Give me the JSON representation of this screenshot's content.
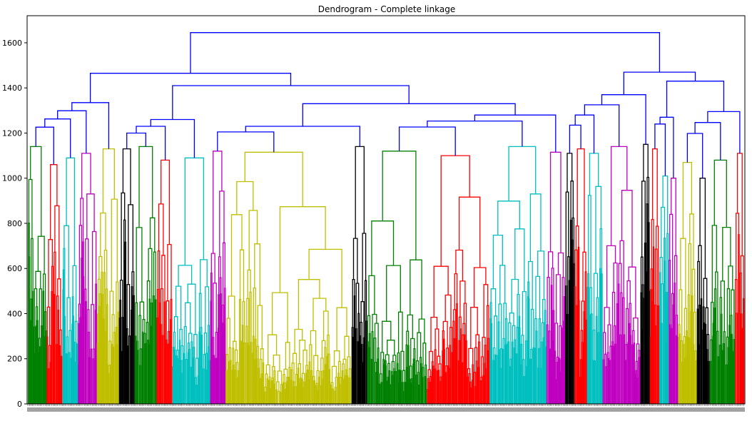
{
  "chart_data": {
    "type": "dendrogram",
    "title": "Dendrogram - Complete linkage",
    "xlabel": "",
    "ylabel": "",
    "ylim": [
      0,
      1720
    ],
    "yticks": [
      0,
      200,
      400,
      600,
      800,
      1000,
      1200,
      1400,
      1600
    ],
    "grid": false,
    "above_threshold_color": "#0000ff",
    "merge_heights_upper": {
      "root": 1645,
      "left_main": 1465,
      "right_main": 1470,
      "left_a": 1335,
      "left_b": 1410,
      "left_b_right": 1330,
      "left_b_right_right": 1280,
      "right_a": 1370,
      "right_b": 1430,
      "right_b_right": 1295
    },
    "cluster_colors": [
      "#008000",
      "#ff0000",
      "#00bfbf",
      "#bf00bf",
      "#bfbf00",
      "#000000"
    ],
    "clusters": [
      {
        "color": "#008000",
        "height": 1140
      },
      {
        "color": "#ff0000",
        "height": 1060
      },
      {
        "color": "#00bfbf",
        "height": 1090
      },
      {
        "color": "#bf00bf",
        "height": 1110
      },
      {
        "color": "#bfbf00",
        "height": 1130
      },
      {
        "color": "#000000",
        "height": 1130
      },
      {
        "color": "#008000",
        "height": 1140
      },
      {
        "color": "#ff0000",
        "height": 1080
      },
      {
        "color": "#00bfbf",
        "height": 1090
      },
      {
        "color": "#bf00bf",
        "height": 1120
      },
      {
        "color": "#bfbf00",
        "height": 1115
      },
      {
        "color": "#000000",
        "height": 1140
      },
      {
        "color": "#008000",
        "height": 1120
      },
      {
        "color": "#ff0000",
        "height": 1100
      },
      {
        "color": "#00bfbf",
        "height": 1140
      },
      {
        "color": "#bf00bf",
        "height": 1115
      },
      {
        "color": "#000000",
        "height": 1110
      },
      {
        "color": "#ff0000",
        "height": 1130
      },
      {
        "color": "#00bfbf",
        "height": 1110
      },
      {
        "color": "#bf00bf",
        "height": 1140
      },
      {
        "color": "#000000",
        "height": 1150
      },
      {
        "color": "#ff0000",
        "height": 1130
      },
      {
        "color": "#00bfbf",
        "height": 1010
      },
      {
        "color": "#bf00bf",
        "height": 1000
      },
      {
        "color": "#bfbf00",
        "height": 1070
      },
      {
        "color": "#000000",
        "height": 1000
      },
      {
        "color": "#008000",
        "height": 1080
      },
      {
        "color": "#ff0000",
        "height": 1110
      }
    ]
  }
}
